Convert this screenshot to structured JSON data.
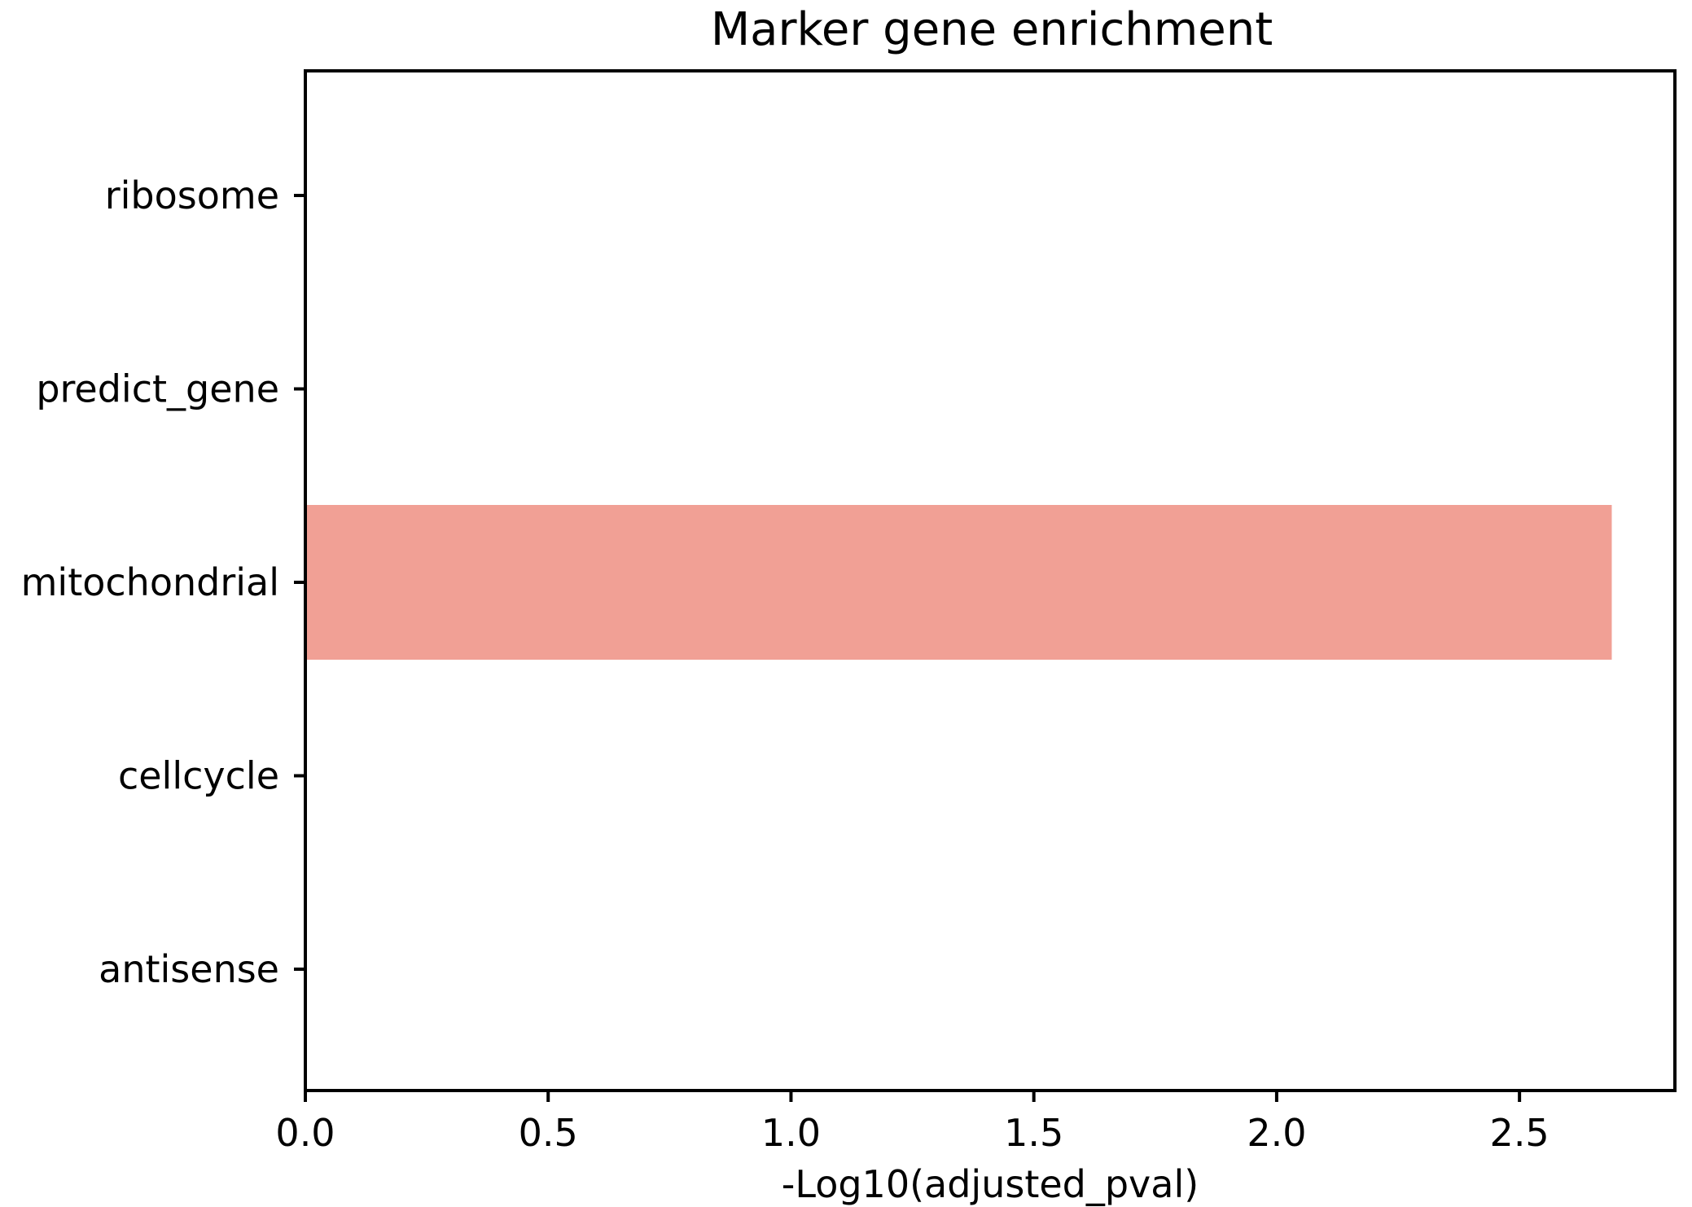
{
  "chart_data": {
    "type": "bar",
    "orientation": "horizontal",
    "title": "Marker gene enrichment",
    "xlabel": "-Log10(adjusted_pval)",
    "ylabel": "",
    "categories": [
      "ribosome",
      "predict_gene",
      "mitochondrial",
      "cellcycle",
      "antisense"
    ],
    "values": [
      0,
      0,
      2.69,
      0,
      0
    ],
    "xlim": [
      0,
      2.82
    ],
    "xticks": [
      "0.0",
      "0.5",
      "1.0",
      "1.5",
      "2.0",
      "2.5"
    ],
    "xtick_values": [
      0,
      0.5,
      1.0,
      1.5,
      2.0,
      2.5
    ],
    "bar_color": "#f1a095",
    "grid": false,
    "legend": "none"
  }
}
